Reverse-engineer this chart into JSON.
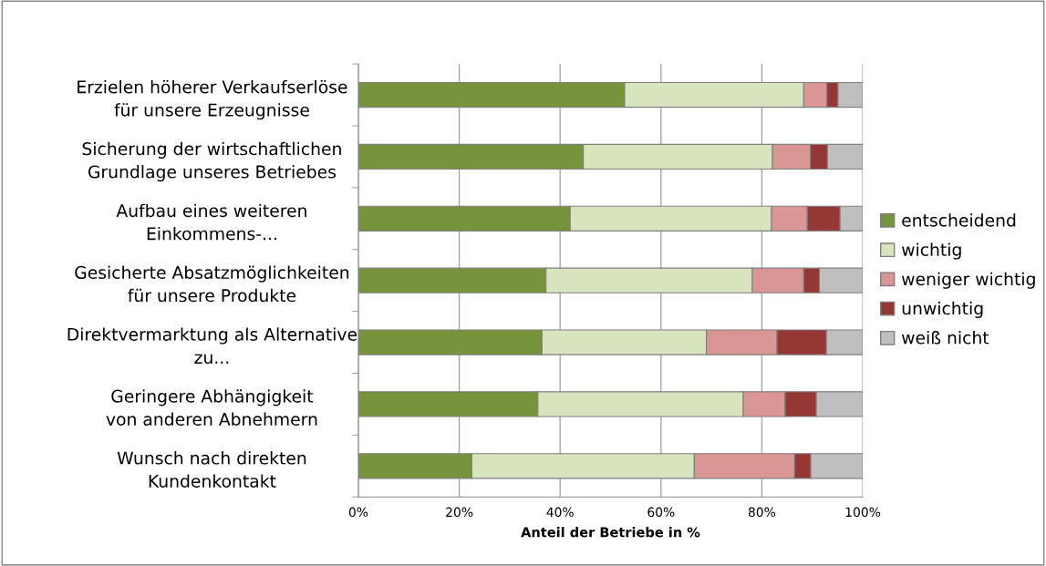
{
  "chart_data": {
    "type": "bar",
    "orientation": "horizontal",
    "stacked": true,
    "xlabel": "Anteil der Betriebe in %",
    "categories": [
      "Erzielen höherer Verkaufserlöse\nfür unsere Erzeugnisse",
      "Sicherung der wirtschaftlichen\nGrundlage unseres Betriebes",
      "Aufbau eines weiteren\nEinkommens-...",
      "Gesicherte Absatzmöglichkeiten\nfür unsere Produkte",
      "Direktvermarktung als Alternative\nzu...",
      "Geringere Abhängigkeit\nvon anderen Abnehmern",
      "Wunsch nach direkten\nKundenkontakt"
    ],
    "series": [
      {
        "name": "entscheidend",
        "color": "#77933c",
        "values": [
          52.8,
          44.6,
          42.0,
          37.2,
          36.4,
          35.6,
          22.5
        ]
      },
      {
        "name": "wichtig",
        "color": "#d7e4bd",
        "values": [
          35.5,
          37.5,
          39.9,
          40.9,
          32.6,
          40.7,
          44.1
        ]
      },
      {
        "name": "weniger wichtig",
        "color": "#d99694",
        "values": [
          4.6,
          7.5,
          7.1,
          10.2,
          14.0,
          8.3,
          19.9
        ]
      },
      {
        "name": "unwichtig",
        "color": "#953735",
        "values": [
          2.2,
          3.4,
          6.5,
          3.1,
          9.8,
          6.2,
          3.2
        ]
      },
      {
        "name": "weiß nicht",
        "color": "#bfbfbf",
        "values": [
          4.9,
          7.0,
          4.5,
          8.6,
          7.2,
          9.2,
          10.3
        ]
      }
    ],
    "xlim": [
      0,
      100
    ],
    "xticks": [
      {
        "value": 0,
        "label": "0%"
      },
      {
        "value": 20,
        "label": "20%"
      },
      {
        "value": 40,
        "label": "40%"
      },
      {
        "value": 60,
        "label": "60%"
      },
      {
        "value": 80,
        "label": "80%"
      },
      {
        "value": 100,
        "label": "100%"
      }
    ],
    "grid": "x",
    "legend": "right"
  }
}
